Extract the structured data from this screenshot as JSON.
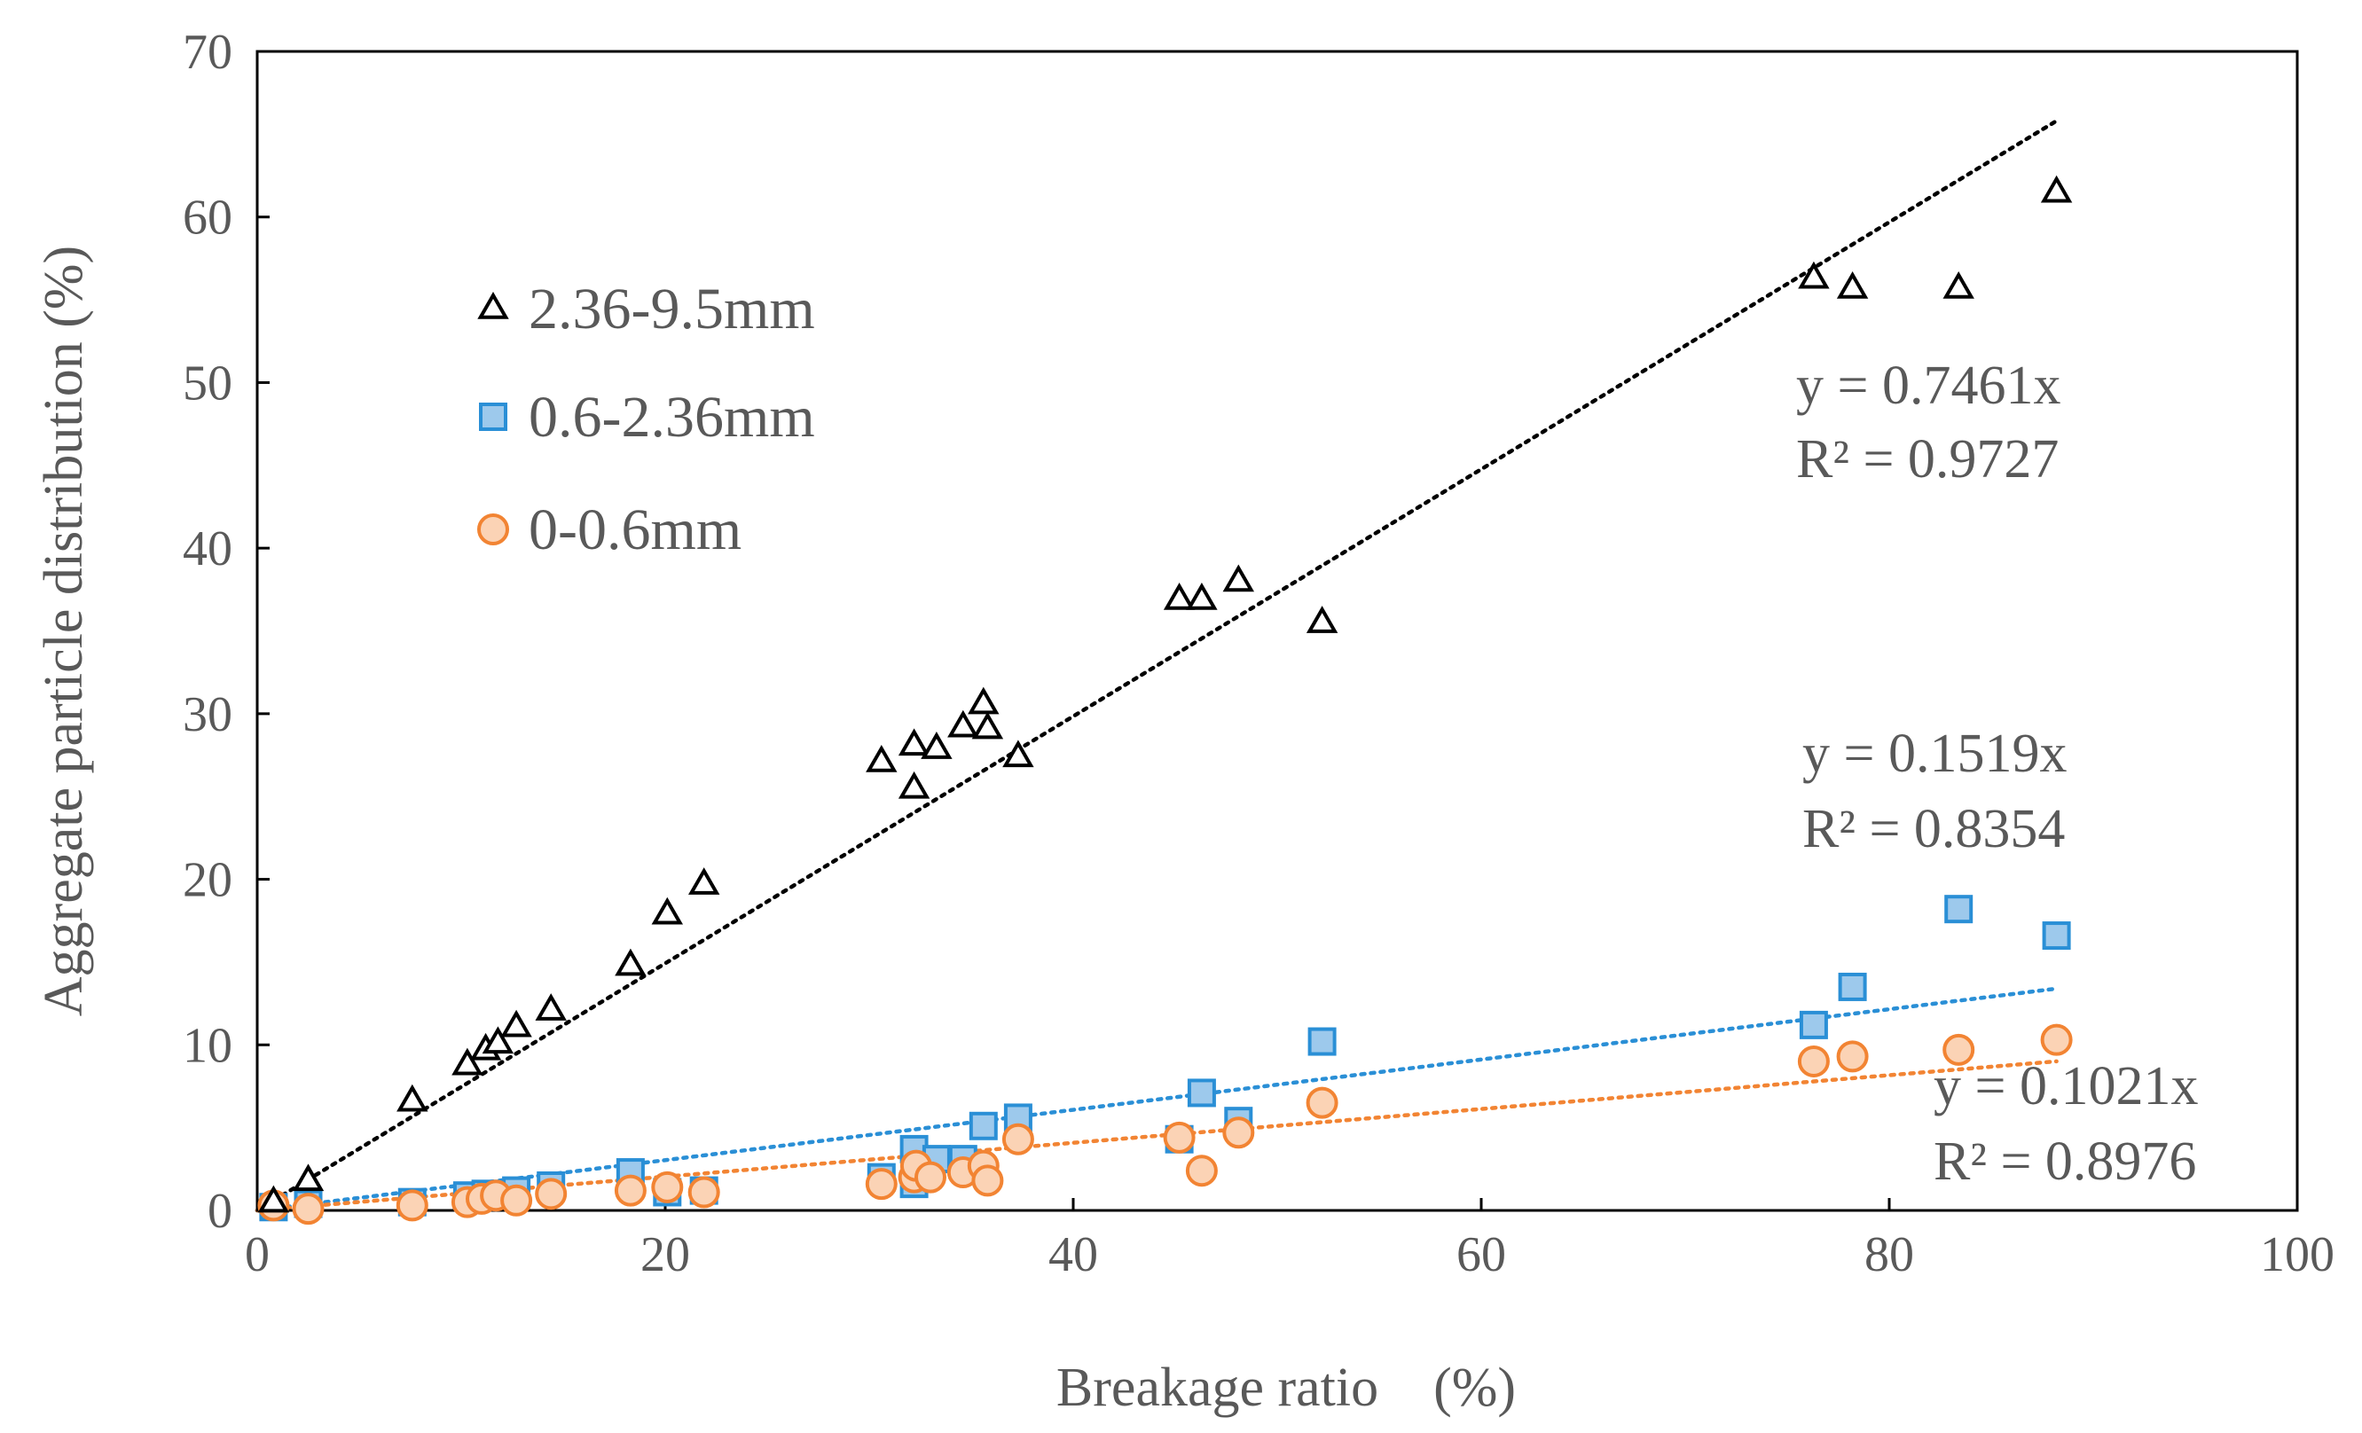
{
  "chart_data": {
    "type": "scatter",
    "title": "",
    "xlabel": "Breakage ratio　(%)",
    "ylabel": "Aggregate  particle distribution (%)",
    "xlim": [
      0,
      100
    ],
    "ylim": [
      0,
      70
    ],
    "xticks": [
      0,
      20,
      40,
      60,
      80,
      100
    ],
    "yticks": [
      0,
      10,
      20,
      30,
      40,
      50,
      60,
      70
    ],
    "grid": false,
    "legend_position": "top-left",
    "series": [
      {
        "name": "2.36-9.5mm",
        "marker": "triangle",
        "color": "#000000",
        "fill": "#ffffff",
        "x": [
          0.8,
          2.5,
          7.6,
          10.3,
          11.2,
          11.8,
          12.7,
          14.4,
          18.3,
          20.1,
          21.9,
          30.6,
          32.2,
          32.2,
          33.3,
          34.6,
          35.6,
          35.8,
          37.3,
          45.2,
          46.3,
          48.1,
          52.2,
          76.3,
          78.2,
          83.4,
          88.2
        ],
        "y": [
          0.5,
          1.8,
          6.6,
          8.8,
          9.7,
          10.1,
          11.1,
          12.1,
          14.8,
          17.9,
          19.7,
          27.1,
          25.5,
          28.1,
          27.9,
          29.2,
          30.6,
          29.1,
          27.4,
          36.9,
          36.9,
          38.0,
          35.5,
          56.3,
          55.7,
          55.7,
          61.5
        ]
      },
      {
        "name": "0.6-2.36mm",
        "marker": "square",
        "color": "#2a8fd6",
        "fill": "#9dc9ec",
        "x": [
          0.8,
          2.5,
          7.6,
          10.3,
          11.2,
          12.7,
          14.4,
          18.3,
          20.1,
          21.9,
          30.6,
          32.2,
          32.2,
          33.3,
          34.6,
          35.6,
          37.3,
          45.2,
          46.3,
          48.1,
          52.2,
          76.3,
          78.2,
          83.4,
          88.2
        ],
        "y": [
          0.2,
          0.4,
          0.5,
          0.9,
          1.0,
          1.2,
          1.5,
          2.3,
          1.1,
          1.2,
          2.0,
          1.6,
          3.7,
          3.1,
          3.1,
          5.1,
          5.6,
          4.3,
          7.1,
          5.4,
          10.2,
          11.2,
          13.5,
          18.2,
          16.6
        ]
      },
      {
        "name": "0-0.6mm",
        "marker": "circle",
        "color": "#f28433",
        "fill": "#fbd3b5",
        "x": [
          0.8,
          2.5,
          7.6,
          10.3,
          11.0,
          11.7,
          12.7,
          14.4,
          18.3,
          20.1,
          21.9,
          30.6,
          32.2,
          32.3,
          33.0,
          34.6,
          35.6,
          35.8,
          37.3,
          45.2,
          46.3,
          48.1,
          52.2,
          76.3,
          78.2,
          83.4,
          88.2
        ],
        "y": [
          0.3,
          0.1,
          0.3,
          0.5,
          0.7,
          0.9,
          0.6,
          1.0,
          1.2,
          1.4,
          1.1,
          1.6,
          2.0,
          2.7,
          2.0,
          2.3,
          2.7,
          1.8,
          4.3,
          4.4,
          2.4,
          4.7,
          6.5,
          9.0,
          9.3,
          9.7,
          10.3
        ]
      }
    ],
    "trendlines": [
      {
        "series": "2.36-9.5mm",
        "slope": 0.7461,
        "equation": "y = 0.7461x",
        "r2": "R² = 0.9727",
        "color": "#000000",
        "x_range": [
          0,
          88.2
        ]
      },
      {
        "series": "0.6-2.36mm",
        "slope": 0.1519,
        "equation": "y = 0.1519x",
        "r2": "R² = 0.8354",
        "color": "#2a8fd6",
        "x_range": [
          0,
          88.2
        ]
      },
      {
        "series": "0-0.6mm",
        "slope": 0.1021,
        "equation": "y = 0.1021x",
        "r2": "R² = 0.8976",
        "color": "#f28433",
        "x_range": [
          0,
          88.2
        ]
      }
    ]
  }
}
